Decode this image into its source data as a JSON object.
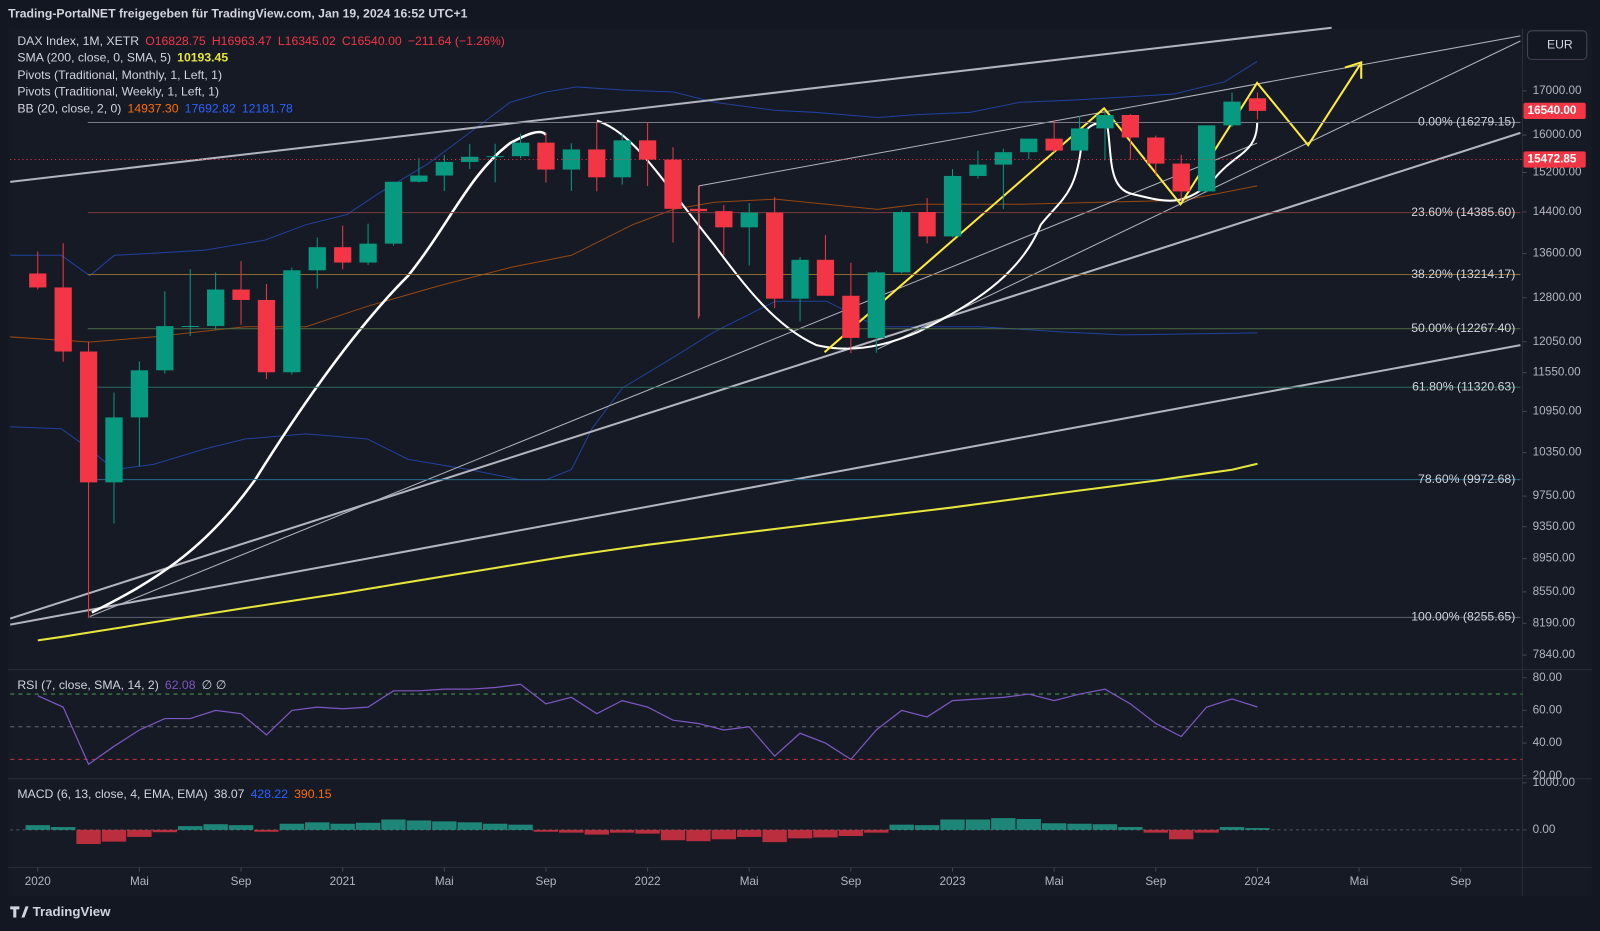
{
  "header": {
    "title": "Trading-PortalNET freigegeben für TradingView.com, Jan 19, 2024 16:52 UTC+1",
    "brand": "TradingView",
    "currency": "EUR"
  },
  "chart_data": [
    {
      "type": "candlestick",
      "legend": {
        "title": "DAX Index, 1M, XETR",
        "values": [
          "O16828.75",
          "H16963.47",
          "L16345.02",
          "C16540.00",
          "−211.64 (−1.26%)"
        ]
      },
      "x": [
        "2020-01",
        "2020-02",
        "2020-03",
        "2020-04",
        "2020-05",
        "2020-06",
        "2020-07",
        "2020-08",
        "2020-09",
        "2020-10",
        "2020-11",
        "2020-12",
        "2021-01",
        "2021-02",
        "2021-03",
        "2021-04",
        "2021-05",
        "2021-06",
        "2021-07",
        "2021-08",
        "2021-09",
        "2021-10",
        "2021-11",
        "2021-12",
        "2022-01",
        "2022-02",
        "2022-03",
        "2022-04",
        "2022-05",
        "2022-06",
        "2022-07",
        "2022-08",
        "2022-09",
        "2022-10",
        "2022-11",
        "2022-12",
        "2023-01",
        "2023-02",
        "2023-03",
        "2023-04",
        "2023-05",
        "2023-06",
        "2023-07",
        "2023-08",
        "2023-09",
        "2023-10",
        "2023-11",
        "2023-12",
        "2024-01"
      ],
      "open": [
        13233,
        12982,
        11890,
        9936,
        10862,
        11587,
        12311,
        12313,
        12945,
        12761,
        11556,
        13291,
        13719,
        13433,
        13786,
        15008,
        15136,
        15421,
        15531,
        15544,
        15835,
        15261,
        15688,
        15100,
        15885,
        15471,
        14461,
        14415,
        14098,
        14388,
        12784,
        13484,
        12835,
        12114,
        13253,
        14397,
        13924,
        15128,
        15365,
        15629,
        15922,
        15664,
        16148,
        16447,
        15947,
        15387,
        14810,
        16215,
        16828.75
      ],
      "high": [
        13640,
        13796,
        12044,
        11240,
        11729,
        12913,
        13314,
        13253,
        13460,
        13043,
        13339,
        13903,
        14131,
        14169,
        15008,
        15502,
        15569,
        15803,
        15811,
        16030,
        16054,
        15819,
        16290,
        16020,
        16285,
        15736,
        14925,
        14536,
        14575,
        14695,
        13532,
        13947,
        13428,
        13282,
        14432,
        14675,
        15270,
        15659,
        15706,
        15923,
        16331,
        16427,
        16528,
        16470,
        15989,
        15575,
        16215,
        16962,
        16963.47
      ],
      "low": [
        12949,
        11724,
        8256,
        9390,
        10160,
        11535,
        12144,
        12253,
        12335,
        11450,
        11520,
        12963,
        13310,
        13390,
        13748,
        14990,
        14816,
        15273,
        14996,
        15500,
        14989,
        14819,
        14813,
        14951,
        14919,
        13807,
        12439,
        13570,
        13380,
        12618,
        12391,
        12836,
        11863,
        11869,
        13232,
        13791,
        13908,
        15076,
        14458,
        15482,
        15629,
        15653,
        15456,
        15469,
        15138,
        14630,
        14790,
        16176,
        16345.02
      ],
      "close": [
        12982,
        11890,
        9936,
        10862,
        11587,
        12311,
        12313,
        12945,
        12761,
        11556,
        13291,
        13719,
        13433,
        13786,
        15008,
        15136,
        15421,
        15531,
        15544,
        15835,
        15261,
        15688,
        15100,
        15885,
        15471,
        14461,
        14415,
        14098,
        14388,
        12784,
        13484,
        12835,
        12114,
        13253,
        14397,
        13924,
        15128,
        15365,
        15629,
        15922,
        15664,
        16148,
        16447,
        15947,
        15387,
        14810,
        16215,
        16752,
        16540
      ],
      "up_color": "#089981",
      "down_color": "#f23645",
      "xlim": [
        "2019-12",
        "2024-11"
      ],
      "xticks": [
        {
          "value": "2020-01",
          "label": "2020"
        },
        {
          "value": "2020-05",
          "label": "Mai"
        },
        {
          "value": "2020-09",
          "label": "Sep"
        },
        {
          "value": "2021-01",
          "label": "2021"
        },
        {
          "value": "2021-05",
          "label": "Mai"
        },
        {
          "value": "2021-09",
          "label": "Sep"
        },
        {
          "value": "2022-01",
          "label": "2022"
        },
        {
          "value": "2022-05",
          "label": "Mai"
        },
        {
          "value": "2022-09",
          "label": "Sep"
        },
        {
          "value": "2023-01",
          "label": "2023"
        },
        {
          "value": "2023-05",
          "label": "Mai"
        },
        {
          "value": "2023-09",
          "label": "Sep"
        },
        {
          "value": "2024-01",
          "label": "2024"
        },
        {
          "value": "2024-05",
          "label": "Mai"
        },
        {
          "value": "2024-09",
          "label": "Sep"
        }
      ],
      "log_scale": true,
      "ylim": [
        7696,
        18461
      ],
      "yticks": [
        {
          "value": 17000,
          "label": "17000.00"
        },
        {
          "value": 16000,
          "label": "16000.00"
        },
        {
          "value": 15200,
          "label": "15200.00"
        },
        {
          "value": 14400,
          "label": "14400.00"
        },
        {
          "value": 13600,
          "label": "13600.00"
        },
        {
          "value": 12800,
          "label": "12800.00"
        },
        {
          "value": 12050,
          "label": "12050.00"
        },
        {
          "value": 11550,
          "label": "11550.00"
        },
        {
          "value": 10950,
          "label": "10950.00"
        },
        {
          "value": 10350,
          "label": "10350.00"
        },
        {
          "value": 9750,
          "label": "9750.00"
        },
        {
          "value": 9350,
          "label": "9350.00"
        },
        {
          "value": 8950,
          "label": "8950.00"
        },
        {
          "value": 8550,
          "label": "8550.00"
        },
        {
          "value": 8190,
          "label": "8190.00"
        },
        {
          "value": 7840,
          "label": "7840.00"
        }
      ],
      "price_tags": [
        {
          "value": 16540,
          "label": "16540.00",
          "color": "#f23645",
          "dotted": false
        },
        {
          "value": 15472.85,
          "label": "15472.85",
          "color": "#f23645",
          "dotted": true
        }
      ],
      "fib_levels": [
        {
          "value": 16279.15,
          "label": "0.00% (16279.15)",
          "color": "#787b86"
        },
        {
          "value": 14385.6,
          "label": "23.60% (14385.60)",
          "color": "#7a3b3b"
        },
        {
          "value": 13214.17,
          "label": "38.20% (13214.17)",
          "color": "#8a6a2e"
        },
        {
          "value": 12267.4,
          "label": "50.00% (12267.40)",
          "color": "#4a6b45"
        },
        {
          "value": 11320.63,
          "label": "61.80% (11320.63)",
          "color": "#2a6b5b"
        },
        {
          "value": 9972.68,
          "label": "78.60% (9972.68)",
          "color": "#2a6a8a"
        },
        {
          "value": 8255.65,
          "label": "100.00% (8255.65)",
          "color": "#5d606b"
        }
      ],
      "sma": {
        "name": "SMA (200, close, 0, SMA, 5)",
        "color": "#e6e63c",
        "values": [
          8000,
          8040,
          8085,
          8130,
          8175,
          8220,
          8265,
          8310,
          8355,
          8400,
          8445,
          8490,
          8535,
          8585,
          8635,
          8685,
          8735,
          8785,
          8835,
          8885,
          8935,
          8985,
          9030,
          9075,
          9120,
          9160,
          9200,
          9240,
          9280,
          9320,
          9360,
          9400,
          9440,
          9480,
          9520,
          9560,
          9600,
          9645,
          9690,
          9735,
          9780,
          9825,
          9870,
          9915,
          9960,
          10010,
          10060,
          10110,
          10193.45
        ]
      },
      "indicators": [
        "Pivots (Traditional, Monthly, 1, Left, 1)",
        "Pivots (Traditional, Weekly, 1, Left, 1)"
      ],
      "bb": {
        "name": "BB (20, close, 2, 0)",
        "values": [
          "14937.30",
          "17692.82",
          "12181.78"
        ],
        "colors": [
          "#ff6d00",
          "#2962ff",
          "#2962ff"
        ]
      }
    },
    {
      "type": "line",
      "name": "RSI (7, close, SMA, 14, 2)",
      "extra": "∅ ∅",
      "color": "#7e57c2",
      "values": [
        69,
        62,
        27,
        38,
        48,
        55,
        55,
        60,
        58,
        45,
        60,
        62,
        61,
        62,
        72,
        72,
        73,
        73,
        74,
        76,
        64,
        68,
        58,
        66,
        62,
        54,
        52,
        48,
        50,
        32,
        46,
        40,
        30,
        48,
        60,
        56,
        66,
        67,
        68,
        70,
        66,
        70,
        73,
        64,
        52,
        44,
        62,
        67,
        62.08
      ],
      "ylim": [
        18.75,
        82.5
      ],
      "yticks": [
        {
          "value": 80,
          "label": "80.00"
        },
        {
          "value": 60,
          "label": "60.00"
        },
        {
          "value": 40,
          "label": "40.00"
        },
        {
          "value": 20,
          "label": "20.00"
        }
      ],
      "levels": [
        {
          "value": 70,
          "color": "#4caf50"
        },
        {
          "value": 50,
          "color": "#787b86"
        },
        {
          "value": 30,
          "color": "#f23645"
        }
      ]
    },
    {
      "type": "bar",
      "name": "MACD (6, 13, close, 4, EMA, EMA)",
      "legend_values": [
        "38.07",
        "428.22",
        "390.15"
      ],
      "legend_colors": [
        "#d1d4dc",
        "#2962ff",
        "#ff6d00"
      ],
      "values": [
        100,
        60,
        -300,
        -250,
        -150,
        -50,
        80,
        120,
        100,
        -40,
        130,
        160,
        130,
        150,
        220,
        200,
        180,
        160,
        130,
        110,
        -40,
        -60,
        -100,
        -60,
        -80,
        -220,
        -240,
        -200,
        -150,
        -260,
        -180,
        -160,
        -130,
        -60,
        110,
        100,
        220,
        220,
        250,
        230,
        140,
        130,
        120,
        60,
        -60,
        -200,
        -60,
        60,
        38.07
      ],
      "pos_color": "#22ab94",
      "neg_color": "#f23645",
      "ylim": [
        -800,
        1020
      ],
      "yticks": [
        {
          "value": 1000,
          "label": "1000.00"
        },
        {
          "value": 0,
          "label": "0.00"
        }
      ]
    }
  ]
}
